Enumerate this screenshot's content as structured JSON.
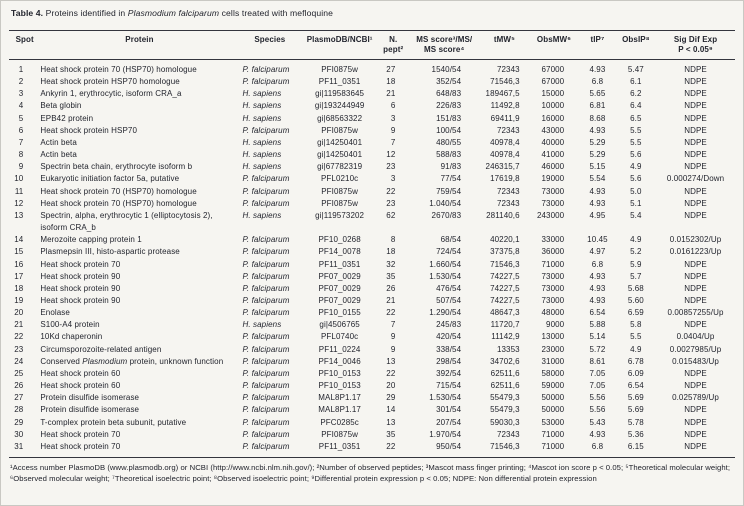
{
  "title": {
    "label": "Table 4.",
    "pre": " Proteins identified in ",
    "species": "Plasmodium falciparum",
    "post": " cells treated with mefloquine"
  },
  "header": {
    "spot": "Spot",
    "protein": "Protein",
    "species": "Species",
    "db": "PlasmoDB/NCBI¹",
    "npept": "N.\npept²",
    "ms": "MS score³/MS/\nMS score⁴",
    "tmw": "tMW⁵",
    "obsmw": "ObsMW⁶",
    "tip": "tIP⁷",
    "obsip": "ObsIP⁸",
    "sig": "Sig Dif Exp\nP < 0.05⁹"
  },
  "rows": [
    {
      "spot": "1",
      "protein": "Heat shock protein 70 (HSP70) homologue",
      "species": "P. falciparum",
      "db": "PFI0875w",
      "npept": "27",
      "ms": "1540/54",
      "tmw": "72343",
      "obsmw": "67000",
      "tip": "4.93",
      "obsip": "5.47",
      "sig": "NDPE"
    },
    {
      "spot": "2",
      "protein": "Heat shock protein HSP70 homologue",
      "species": "P. falciparum",
      "db": "PF11_0351",
      "npept": "18",
      "ms": "352/54",
      "tmw": "71546,3",
      "obsmw": "67000",
      "tip": "6.8",
      "obsip": "6.1",
      "sig": "NDPE"
    },
    {
      "spot": "3",
      "protein": "Ankyrin 1, erythrocytic, isoform CRA_a",
      "species": "H. sapiens",
      "db": "gi|119583645",
      "npept": "21",
      "ms": "648/83",
      "tmw": "189467,5",
      "obsmw": "15000",
      "tip": "5.65",
      "obsip": "6.2",
      "sig": "NDPE"
    },
    {
      "spot": "4",
      "protein": "Beta globin",
      "species": "H. sapiens",
      "db": "gi|193244949",
      "npept": "6",
      "ms": "226/83",
      "tmw": "11492,8",
      "obsmw": "10000",
      "tip": "6.81",
      "obsip": "6.4",
      "sig": "NDPE"
    },
    {
      "spot": "5",
      "protein": "EPB42 protein",
      "species": "H. sapiens",
      "db": "gi|68563322",
      "npept": "3",
      "ms": "151/83",
      "tmw": "69411,9",
      "obsmw": "16000",
      "tip": "8.68",
      "obsip": "6.5",
      "sig": "NDPE"
    },
    {
      "spot": "6",
      "protein": "Heat shock protein HSP70",
      "species": "P. falciparum",
      "db": "PFI0875w",
      "npept": "9",
      "ms": "100/54",
      "tmw": "72343",
      "obsmw": "43000",
      "tip": "4.93",
      "obsip": "5.5",
      "sig": "NDPE"
    },
    {
      "spot": "7",
      "protein": "Actin beta",
      "species": "H. sapiens",
      "db": "gi|14250401",
      "npept": "7",
      "ms": "480/55",
      "tmw": "40978,4",
      "obsmw": "40000",
      "tip": "5.29",
      "obsip": "5.5",
      "sig": "NDPE"
    },
    {
      "spot": "8",
      "protein": "Actin beta",
      "species": "H. sapiens",
      "db": "gi|14250401",
      "npept": "12",
      "ms": "588/83",
      "tmw": "40978,4",
      "obsmw": "41000",
      "tip": "5.29",
      "obsip": "5.6",
      "sig": "NDPE"
    },
    {
      "spot": "9",
      "protein": "Spectrin beta chain, erythrocyte isoform b",
      "species": "H. sapiens",
      "db": "gi|67782319",
      "npept": "23",
      "ms": "91/83",
      "tmw": "246315,7",
      "obsmw": "46000",
      "tip": "5.15",
      "obsip": "4.9",
      "sig": "NDPE"
    },
    {
      "spot": "10",
      "protein": "Eukaryotic initiation factor 5a, putative",
      "species": "P. falciparum",
      "db": "PFL0210c",
      "npept": "3",
      "ms": "77/54",
      "tmw": "17619,8",
      "obsmw": "19000",
      "tip": "5.54",
      "obsip": "5.6",
      "sig": "0.000274/Down"
    },
    {
      "spot": "11",
      "protein": "Heat shock protein 70 (HSP70) homologue",
      "species": "P. falciparum",
      "db": "PFI0875w",
      "npept": "22",
      "ms": "759/54",
      "tmw": "72343",
      "obsmw": "73000",
      "tip": "4.93",
      "obsip": "5.0",
      "sig": "NDPE"
    },
    {
      "spot": "12",
      "protein": "Heat shock protein 70 (HSP70) homologue",
      "species": "P. falciparum",
      "db": "PFI0875w",
      "npept": "23",
      "ms": "1.040/54",
      "tmw": "72343",
      "obsmw": "73000",
      "tip": "4.93",
      "obsip": "5.1",
      "sig": "NDPE"
    },
    {
      "spot": "13",
      "protein": "Spectrin, alpha, erythrocytic 1 (elliptocytosis 2), isoform CRA_b",
      "species": "H. sapiens",
      "db": "gi|119573202",
      "npept": "62",
      "ms": "2670/83",
      "tmw": "281140,6",
      "obsmw": "243000",
      "tip": "4.95",
      "obsip": "5.4",
      "sig": "NDPE"
    },
    {
      "spot": "14",
      "protein": "Merozoite capping protein 1",
      "species": "P. falciparum",
      "db": "PF10_0268",
      "npept": "8",
      "ms": "68/54",
      "tmw": "40220,1",
      "obsmw": "33000",
      "tip": "10.45",
      "obsip": "4.9",
      "sig": "0.0152302/Up"
    },
    {
      "spot": "15",
      "protein": "Plasmepsin III, histo-aspartic protease",
      "species": "P. falciparum",
      "db": "PF14_0078",
      "npept": "18",
      "ms": "724/54",
      "tmw": "37375,8",
      "obsmw": "36000",
      "tip": "4.97",
      "obsip": "5.2",
      "sig": "0.0161223/Up"
    },
    {
      "spot": "16",
      "protein": "Heat shock protein 70",
      "species": "P. falciparum",
      "db": "PF11_0351",
      "npept": "32",
      "ms": "1.660/54",
      "tmw": "71546,3",
      "obsmw": "71000",
      "tip": "6.8",
      "obsip": "5.9",
      "sig": "NDPE"
    },
    {
      "spot": "17",
      "protein": "Heat shock protein 90",
      "species": "P. falciparum",
      "db": "PF07_0029",
      "npept": "35",
      "ms": "1.530/54",
      "tmw": "74227,5",
      "obsmw": "73000",
      "tip": "4.93",
      "obsip": "5.7",
      "sig": "NDPE"
    },
    {
      "spot": "18",
      "protein": "Heat shock protein 90",
      "species": "P. falciparum",
      "db": "PF07_0029",
      "npept": "26",
      "ms": "476/54",
      "tmw": "74227,5",
      "obsmw": "73000",
      "tip": "4.93",
      "obsip": "5.68",
      "sig": "NDPE"
    },
    {
      "spot": "19",
      "protein": "Heat shock protein 90",
      "species": "P. falciparum",
      "db": "PF07_0029",
      "npept": "21",
      "ms": "507/54",
      "tmw": "74227,5",
      "obsmw": "73000",
      "tip": "4.93",
      "obsip": "5.60",
      "sig": "NDPE"
    },
    {
      "spot": "20",
      "protein": "Enolase",
      "species": "P. falciparum",
      "db": "PF10_0155",
      "npept": "22",
      "ms": "1.290/54",
      "tmw": "48647,3",
      "obsmw": "48000",
      "tip": "6.54",
      "obsip": "6.59",
      "sig": "0.00857255/Up"
    },
    {
      "spot": "21",
      "protein": "S100-A4 protein",
      "species": "H. sapiens",
      "db": "gi|4506765",
      "npept": "7",
      "ms": "245/83",
      "tmw": "11720,7",
      "obsmw": "9000",
      "tip": "5.88",
      "obsip": "5.8",
      "sig": "NDPE"
    },
    {
      "spot": "22",
      "protein": "10Kd chaperonin",
      "species": "P. falciparum",
      "db": "PFL0740c",
      "npept": "9",
      "ms": "420/54",
      "tmw": "11142,9",
      "obsmw": "13000",
      "tip": "5.14",
      "obsip": "5.5",
      "sig": "0.0404/Up"
    },
    {
      "spot": "23",
      "protein": "Circumsporozoite-related antigen",
      "species": "P. falciparum",
      "db": "PF11_0224",
      "npept": "9",
      "ms": "338/54",
      "tmw": "13353",
      "obsmw": "23000",
      "tip": "5.72",
      "obsip": "4.9",
      "sig": "0.0027985/Up"
    },
    {
      "spot": "24",
      "protein": "Conserved Plasmodium protein, unknown function",
      "species": "P. falciparum",
      "db": "PF14_0046",
      "npept": "13",
      "ms": "298/54",
      "tmw": "34702,6",
      "obsmw": "31000",
      "tip": "8.61",
      "obsip": "6.78",
      "sig": "0.015483/Up"
    },
    {
      "spot": "25",
      "protein": "Heat shock protein 60",
      "species": "P. falciparum",
      "db": "PF10_0153",
      "npept": "22",
      "ms": "392/54",
      "tmw": "62511,6",
      "obsmw": "58000",
      "tip": "7.05",
      "obsip": "6.09",
      "sig": "NDPE"
    },
    {
      "spot": "26",
      "protein": "Heat shock protein 60",
      "species": "P. falciparum",
      "db": "PF10_0153",
      "npept": "20",
      "ms": "715/54",
      "tmw": "62511,6",
      "obsmw": "59000",
      "tip": "7.05",
      "obsip": "6.54",
      "sig": "NDPE"
    },
    {
      "spot": "27",
      "protein": "Protein disulfide isomerase",
      "species": "P. falciparum",
      "db": "MAL8P1.17",
      "npept": "29",
      "ms": "1.530/54",
      "tmw": "55479,3",
      "obsmw": "50000",
      "tip": "5.56",
      "obsip": "5.69",
      "sig": "0.025789/Up"
    },
    {
      "spot": "28",
      "protein": "Protein disulfide isomerase",
      "species": "P. falciparum",
      "db": "MAL8P1.17",
      "npept": "14",
      "ms": "301/54",
      "tmw": "55479,3",
      "obsmw": "50000",
      "tip": "5.56",
      "obsip": "5.69",
      "sig": "NDPE"
    },
    {
      "spot": "29",
      "protein": "T-complex protein beta subunit, putative",
      "species": "P. falciparum",
      "db": "PFC0285c",
      "npept": "13",
      "ms": "207/54",
      "tmw": "59030,3",
      "obsmw": "53000",
      "tip": "5.43",
      "obsip": "5.78",
      "sig": "NDPE"
    },
    {
      "spot": "30",
      "protein": "Heat shock protein 70",
      "species": "P. falciparum",
      "db": "PFI0875w",
      "npept": "35",
      "ms": "1.970/54",
      "tmw": "72343",
      "obsmw": "71000",
      "tip": "4.93",
      "obsip": "5.36",
      "sig": "NDPE"
    },
    {
      "spot": "31",
      "protein": "Heat shock protein 70",
      "species": "P. falciparum",
      "db": "PF11_0351",
      "npept": "22",
      "ms": "950/54",
      "tmw": "71546,3",
      "obsmw": "71000",
      "tip": "6.8",
      "obsip": "6.15",
      "sig": "NDPE"
    }
  ],
  "footnote": "¹Access number PlasmoDB (www.plasmodb.org) or NCBI (http://www.ncbi.nlm.nih.gov/); ²Number of observed peptides; ³Mascot mass finger printing; ⁴Mascot ion score p < 0.05; ⁵Theoretical molecular weight; ⁶Observed molecular weight; ⁷Theoretical isoelectric point; ⁸Observed isoelectric point; ⁹Differential protein expression p < 0.05; NDPE: Non differential protein expression"
}
